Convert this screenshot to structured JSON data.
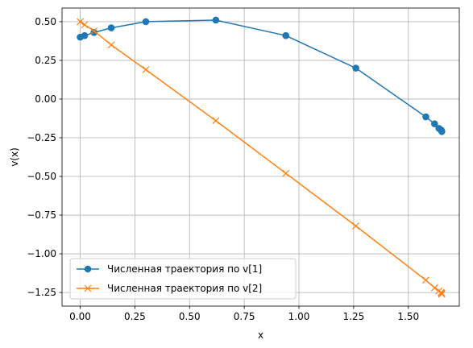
{
  "chart_data": {
    "type": "line",
    "title": "",
    "xlabel": "x",
    "ylabel": "v(x)",
    "xlim": [
      -0.083,
      1.733
    ],
    "ylim": [
      -1.338,
      0.588
    ],
    "grid": true,
    "legend_position": "lower-left",
    "xticks": [
      0.0,
      0.25,
      0.5,
      0.75,
      1.0,
      1.25,
      1.5
    ],
    "xtick_labels": [
      "0.00",
      "0.25",
      "0.50",
      "0.75",
      "1.00",
      "1.25",
      "1.50"
    ],
    "yticks": [
      0.5,
      0.25,
      0.0,
      -0.25,
      -0.5,
      -0.75,
      -1.0,
      -1.25
    ],
    "ytick_labels": [
      "0.50",
      "0.25",
      "0.00",
      "−0.25",
      "−0.50",
      "−0.75",
      "−1.00",
      "−1.25"
    ],
    "series": [
      {
        "name": "Численная траектория по v[1]",
        "color": "#1f77b4",
        "marker": "circle",
        "x": [
          0.0,
          0.02,
          0.063,
          0.142,
          0.3,
          0.62,
          0.94,
          1.26,
          1.58,
          1.62,
          1.64,
          1.65,
          1.652,
          1.653
        ],
        "y": [
          0.4,
          0.41,
          0.43,
          0.46,
          0.5,
          0.51,
          0.41,
          0.2,
          -0.115,
          -0.16,
          -0.19,
          -0.2,
          -0.205,
          -0.21
        ]
      },
      {
        "name": "Численная траектория по v[2]",
        "color": "#ff7f0e",
        "marker": "x",
        "x": [
          0.0,
          0.02,
          0.063,
          0.142,
          0.3,
          0.62,
          0.94,
          1.26,
          1.58,
          1.62,
          1.64,
          1.65,
          1.652,
          1.653
        ],
        "y": [
          0.5,
          0.48,
          0.44,
          0.35,
          0.19,
          -0.14,
          -0.48,
          -0.82,
          -1.17,
          -1.22,
          -1.24,
          -1.25,
          -1.255,
          -1.26
        ]
      }
    ]
  }
}
